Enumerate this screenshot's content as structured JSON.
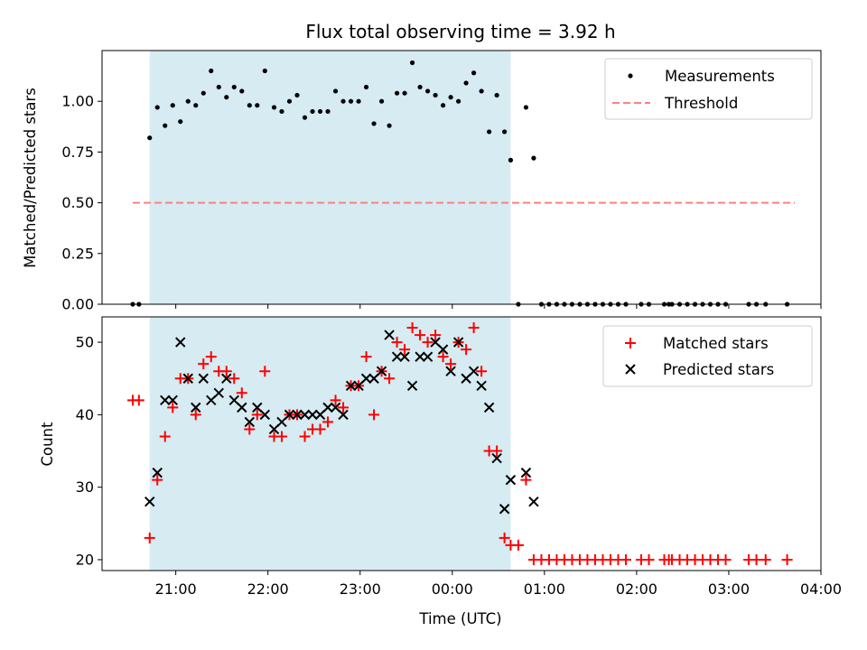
{
  "chart_data": [
    {
      "type": "scatter",
      "title": "Flux total observing time = 3.92 h",
      "xlabel": "",
      "ylabel": "Matched/Predicted stars",
      "ylim": [
        0,
        1.25
      ],
      "yticks": [
        "0.00",
        "0.25",
        "0.50",
        "0.75",
        "1.00"
      ],
      "ytick_values": [
        0,
        0.25,
        0.5,
        0.75,
        1.0
      ],
      "shaded_span": {
        "start": "20:43",
        "end": "00:38",
        "color": "#add8e6"
      },
      "legend": {
        "placement": "upper right",
        "entries": [
          "Measurements",
          "Threshold"
        ]
      },
      "threshold": {
        "name": "Threshold",
        "y": 0.5,
        "x_range": [
          "20:32",
          "03:43"
        ],
        "color": "#ff7f7f",
        "style": "dashed"
      },
      "series": [
        {
          "name": "Measurements",
          "color": "#000000",
          "marker": "dot",
          "points": [
            [
              "20:32",
              0.0
            ],
            [
              "20:36",
              0.0
            ],
            [
              "20:43",
              0.82
            ],
            [
              "20:48",
              0.97
            ],
            [
              "20:53",
              0.88
            ],
            [
              "20:58",
              0.98
            ],
            [
              "21:03",
              0.9
            ],
            [
              "21:08",
              1.0
            ],
            [
              "21:13",
              0.98
            ],
            [
              "21:18",
              1.04
            ],
            [
              "21:23",
              1.15
            ],
            [
              "21:28",
              1.07
            ],
            [
              "21:33",
              1.02
            ],
            [
              "21:38",
              1.07
            ],
            [
              "21:43",
              1.05
            ],
            [
              "21:48",
              0.98
            ],
            [
              "21:53",
              0.98
            ],
            [
              "21:58",
              1.15
            ],
            [
              "22:04",
              0.97
            ],
            [
              "22:09",
              0.95
            ],
            [
              "22:14",
              1.0
            ],
            [
              "22:19",
              1.03
            ],
            [
              "22:24",
              0.92
            ],
            [
              "22:29",
              0.95
            ],
            [
              "22:34",
              0.95
            ],
            [
              "22:39",
              0.95
            ],
            [
              "22:44",
              1.05
            ],
            [
              "22:49",
              1.0
            ],
            [
              "22:54",
              1.0
            ],
            [
              "22:59",
              1.0
            ],
            [
              "23:04",
              1.07
            ],
            [
              "23:09",
              0.89
            ],
            [
              "23:14",
              1.0
            ],
            [
              "23:19",
              0.88
            ],
            [
              "23:24",
              1.04
            ],
            [
              "23:29",
              1.04
            ],
            [
              "23:34",
              1.19
            ],
            [
              "23:39",
              1.07
            ],
            [
              "23:44",
              1.05
            ],
            [
              "23:49",
              1.03
            ],
            [
              "23:54",
              0.98
            ],
            [
              "23:59",
              1.02
            ],
            [
              "00:04",
              1.0
            ],
            [
              "00:09",
              1.09
            ],
            [
              "00:14",
              1.14
            ],
            [
              "00:19",
              1.05
            ],
            [
              "00:24",
              0.85
            ],
            [
              "00:29",
              1.03
            ],
            [
              "00:34",
              0.85
            ],
            [
              "00:38",
              0.71
            ],
            [
              "00:43",
              0.0
            ],
            [
              "00:48",
              0.97
            ],
            [
              "00:53",
              0.72
            ],
            [
              "00:58",
              0.0
            ],
            [
              "01:03",
              0.0
            ],
            [
              "01:08",
              0.0
            ],
            [
              "01:13",
              0.0
            ],
            [
              "01:18",
              0.0
            ],
            [
              "01:23",
              0.0
            ],
            [
              "01:28",
              0.0
            ],
            [
              "01:33",
              0.0
            ],
            [
              "01:38",
              0.0
            ],
            [
              "01:43",
              0.0
            ],
            [
              "01:48",
              0.0
            ],
            [
              "01:53",
              0.0
            ],
            [
              "02:03",
              0.0
            ],
            [
              "02:08",
              0.0
            ],
            [
              "02:18",
              0.0
            ],
            [
              "02:21",
              0.0
            ],
            [
              "02:23",
              0.0
            ],
            [
              "02:28",
              0.0
            ],
            [
              "02:33",
              0.0
            ],
            [
              "02:38",
              0.0
            ],
            [
              "02:43",
              0.0
            ],
            [
              "02:48",
              0.0
            ],
            [
              "02:53",
              0.0
            ],
            [
              "02:58",
              0.0
            ],
            [
              "03:13",
              0.0
            ],
            [
              "03:18",
              0.0
            ],
            [
              "03:24",
              0.0
            ],
            [
              "03:38",
              0.0
            ]
          ]
        }
      ]
    },
    {
      "type": "scatter",
      "title": "",
      "xlabel": "Time (UTC)",
      "ylabel": "Count",
      "ylim": [
        18.5,
        53.5
      ],
      "yticks": [
        "20",
        "30",
        "40",
        "50"
      ],
      "ytick_values": [
        20,
        30,
        40,
        50
      ],
      "xlim": [
        "20:12",
        "04:00"
      ],
      "xticks": [
        "21:00",
        "22:00",
        "23:00",
        "00:00",
        "01:00",
        "02:00",
        "03:00",
        "04:00"
      ],
      "shaded_span": {
        "start": "20:43",
        "end": "00:38",
        "color": "#add8e6"
      },
      "legend": {
        "placement": "upper right",
        "entries": [
          "Matched stars",
          "Predicted stars"
        ]
      },
      "series": [
        {
          "name": "Matched stars",
          "color": "#ff0000",
          "marker": "plus",
          "points": [
            [
              "20:32",
              42
            ],
            [
              "20:36",
              42
            ],
            [
              "20:43",
              23
            ],
            [
              "20:48",
              31
            ],
            [
              "20:53",
              37
            ],
            [
              "20:58",
              41
            ],
            [
              "21:03",
              45
            ],
            [
              "21:08",
              45
            ],
            [
              "21:13",
              40
            ],
            [
              "21:18",
              47
            ],
            [
              "21:23",
              48
            ],
            [
              "21:28",
              46
            ],
            [
              "21:33",
              46
            ],
            [
              "21:38",
              45
            ],
            [
              "21:43",
              43
            ],
            [
              "21:48",
              38
            ],
            [
              "21:53",
              40
            ],
            [
              "21:58",
              46
            ],
            [
              "22:04",
              37
            ],
            [
              "22:09",
              37
            ],
            [
              "22:14",
              40
            ],
            [
              "22:19",
              40
            ],
            [
              "22:24",
              37
            ],
            [
              "22:29",
              38
            ],
            [
              "22:34",
              38
            ],
            [
              "22:39",
              39
            ],
            [
              "22:44",
              42
            ],
            [
              "22:49",
              41
            ],
            [
              "22:54",
              44
            ],
            [
              "22:59",
              44
            ],
            [
              "23:04",
              48
            ],
            [
              "23:09",
              40
            ],
            [
              "23:14",
              46
            ],
            [
              "23:19",
              45
            ],
            [
              "23:24",
              50
            ],
            [
              "23:29",
              49
            ],
            [
              "23:34",
              52
            ],
            [
              "23:39",
              51
            ],
            [
              "23:44",
              50
            ],
            [
              "23:49",
              51
            ],
            [
              "23:54",
              48
            ],
            [
              "23:59",
              47
            ],
            [
              "00:04",
              50
            ],
            [
              "00:09",
              49
            ],
            [
              "00:14",
              52
            ],
            [
              "00:19",
              46
            ],
            [
              "00:24",
              35
            ],
            [
              "00:29",
              35
            ],
            [
              "00:34",
              23
            ],
            [
              "00:38",
              22
            ],
            [
              "00:43",
              22
            ],
            [
              "00:48",
              31
            ],
            [
              "00:53",
              20
            ],
            [
              "00:58",
              20
            ],
            [
              "01:03",
              20
            ],
            [
              "01:08",
              20
            ],
            [
              "01:13",
              20
            ],
            [
              "01:18",
              20
            ],
            [
              "01:23",
              20
            ],
            [
              "01:28",
              20
            ],
            [
              "01:33",
              20
            ],
            [
              "01:38",
              20
            ],
            [
              "01:43",
              20
            ],
            [
              "01:48",
              20
            ],
            [
              "01:53",
              20
            ],
            [
              "02:03",
              20
            ],
            [
              "02:08",
              20
            ],
            [
              "02:18",
              20
            ],
            [
              "02:21",
              20
            ],
            [
              "02:23",
              20
            ],
            [
              "02:28",
              20
            ],
            [
              "02:33",
              20
            ],
            [
              "02:38",
              20
            ],
            [
              "02:43",
              20
            ],
            [
              "02:48",
              20
            ],
            [
              "02:53",
              20
            ],
            [
              "02:58",
              20
            ],
            [
              "03:13",
              20
            ],
            [
              "03:18",
              20
            ],
            [
              "03:24",
              20
            ],
            [
              "03:38",
              20
            ]
          ]
        },
        {
          "name": "Predicted stars",
          "color": "#000000",
          "marker": "x",
          "points": [
            [
              "20:43",
              28
            ],
            [
              "20:48",
              32
            ],
            [
              "20:53",
              42
            ],
            [
              "20:58",
              42
            ],
            [
              "21:03",
              50
            ],
            [
              "21:08",
              45
            ],
            [
              "21:13",
              41
            ],
            [
              "21:18",
              45
            ],
            [
              "21:23",
              42
            ],
            [
              "21:28",
              43
            ],
            [
              "21:33",
              45
            ],
            [
              "21:38",
              42
            ],
            [
              "21:43",
              41
            ],
            [
              "21:48",
              39
            ],
            [
              "21:53",
              41
            ],
            [
              "21:58",
              40
            ],
            [
              "22:04",
              38
            ],
            [
              "22:09",
              39
            ],
            [
              "22:14",
              40
            ],
            [
              "22:19",
              40
            ],
            [
              "22:24",
              40
            ],
            [
              "22:29",
              40
            ],
            [
              "22:34",
              40
            ],
            [
              "22:39",
              41
            ],
            [
              "22:44",
              41
            ],
            [
              "22:49",
              40
            ],
            [
              "22:54",
              44
            ],
            [
              "22:59",
              44
            ],
            [
              "23:04",
              45
            ],
            [
              "23:09",
              45
            ],
            [
              "23:14",
              46
            ],
            [
              "23:19",
              51
            ],
            [
              "23:24",
              48
            ],
            [
              "23:29",
              48
            ],
            [
              "23:34",
              44
            ],
            [
              "23:39",
              48
            ],
            [
              "23:44",
              48
            ],
            [
              "23:49",
              50
            ],
            [
              "23:54",
              49
            ],
            [
              "23:59",
              46
            ],
            [
              "00:04",
              50
            ],
            [
              "00:09",
              45
            ],
            [
              "00:14",
              46
            ],
            [
              "00:19",
              44
            ],
            [
              "00:24",
              41
            ],
            [
              "00:29",
              34
            ],
            [
              "00:34",
              27
            ],
            [
              "00:38",
              31
            ],
            [
              "00:48",
              32
            ],
            [
              "00:53",
              28
            ]
          ]
        }
      ]
    }
  ]
}
